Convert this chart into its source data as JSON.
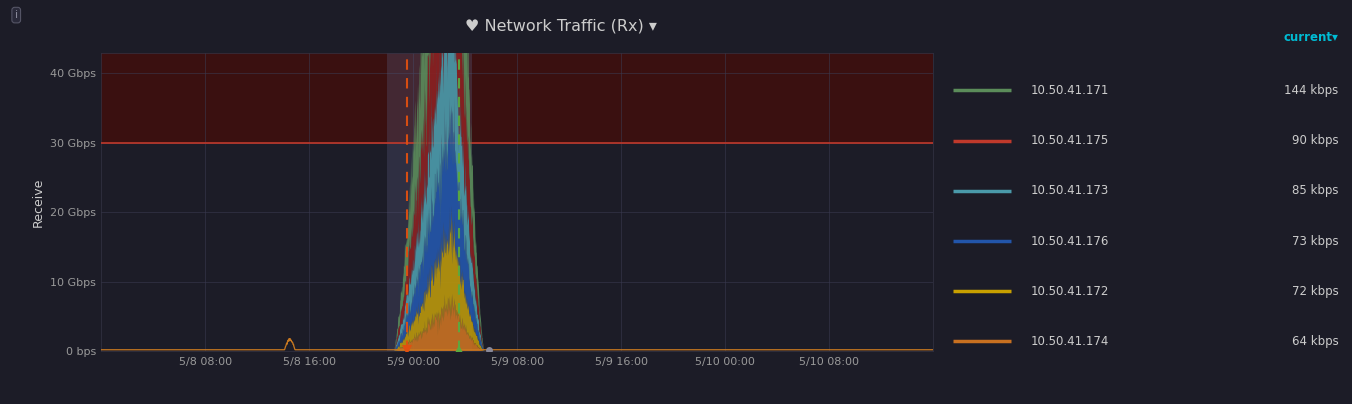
{
  "title": "♥ Network Traffic (Rx) ▾",
  "ylabel": "Receive",
  "background_color": "#1c1c27",
  "plot_bg_color": "#1c1c27",
  "grid_color": "#3a3a50",
  "title_color": "#cccccc",
  "label_color": "#cccccc",
  "tick_color": "#999999",
  "yticks": [
    0,
    10,
    20,
    30,
    40
  ],
  "ytick_labels": [
    "0 bps",
    "10 Gbps",
    "20 Gbps",
    "30 Gbps",
    "40 Gbps"
  ],
  "ylim": [
    0,
    43
  ],
  "xtick_labels": [
    "5/8 08:00",
    "5/8 16:00",
    "5/9 00:00",
    "5/9 08:00",
    "5/9 16:00",
    "5/10 00:00",
    "5/10 08:00"
  ],
  "xtick_positions": [
    8,
    16,
    24,
    32,
    40,
    48,
    56
  ],
  "xlim": [
    0,
    64
  ],
  "threshold_y": 30,
  "threshold_color": "#c0392b",
  "orange_dashed_x": 23.5,
  "green_dashed_x": 27.5,
  "selection_start": 22.0,
  "selection_end": 28.5,
  "spike_start": 22.5,
  "spike_peak": 27.0,
  "spike_end": 29.5,
  "series_order_bottom_to_top": [
    5,
    4,
    3,
    2,
    1,
    0
  ],
  "series": [
    {
      "label": "10.50.41.171",
      "color": "#5b8c5a",
      "value": "144 kbps",
      "peak_height": 36.0
    },
    {
      "label": "10.50.41.175",
      "color": "#8b2020",
      "value": "90 kbps",
      "peak_height": 25.0
    },
    {
      "label": "10.50.41.173",
      "color": "#4a9aaa",
      "value": "85 kbps",
      "peak_height": 20.0
    },
    {
      "label": "10.50.41.176",
      "color": "#2255aa",
      "value": "73 kbps",
      "peak_height": 15.5
    },
    {
      "label": "10.50.41.172",
      "color": "#b8960a",
      "value": "72 kbps",
      "peak_height": 11.0
    },
    {
      "label": "10.50.41.174",
      "color": "#c87020",
      "value": "64 kbps",
      "peak_height": 7.0
    }
  ],
  "orange_baseline_y": 0.25,
  "orange_color": "#c87820",
  "small_spike_x": 14.5,
  "small_spike_height": 1.5,
  "red_triangle_x": 23.5,
  "green_triangle_x": 27.5,
  "dot_x": 29.8,
  "marker_y": 0.25,
  "legend_ips": [
    "10.50.41.171",
    "10.50.41.175",
    "10.50.41.173",
    "10.50.41.176",
    "10.50.41.172",
    "10.50.41.174"
  ],
  "legend_values": [
    "144 kbps",
    "90 kbps",
    "85 kbps",
    "73 kbps",
    "72 kbps",
    "64 kbps"
  ],
  "legend_colors": [
    "#5b8c5a",
    "#c0392b",
    "#4a9aaa",
    "#2255aa",
    "#c8a000",
    "#c87020"
  ],
  "current_label": "current▾",
  "current_color": "#00bcd4"
}
